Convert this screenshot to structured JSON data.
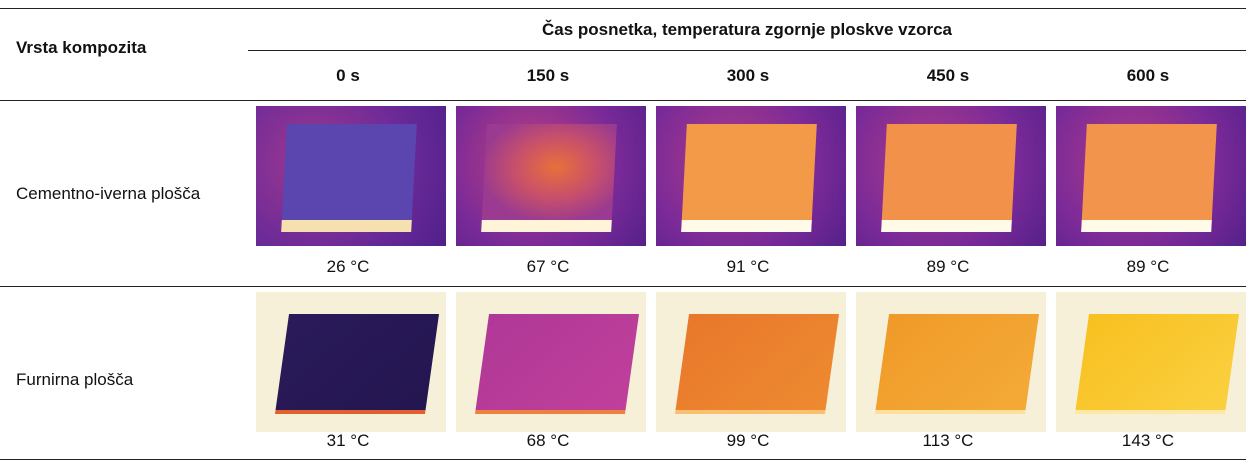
{
  "table": {
    "header": {
      "row_label": "Vrsta kompozita",
      "group": "Čas posnetka, temperatura zgornje ploskve vzorca",
      "columns": [
        "0 s",
        "150 s",
        "300 s",
        "450 s",
        "600 s"
      ]
    },
    "rows": [
      {
        "label": "Cementno-iverna plošča",
        "temperatures": [
          "26 °C",
          "67 °C",
          "91 °C",
          "89 °C",
          "89 °C"
        ]
      },
      {
        "label": "Furnirna plošča",
        "temperatures": [
          "31 °C",
          "68 °C",
          "99 °C",
          "113 °C",
          "143 °C"
        ]
      }
    ]
  }
}
